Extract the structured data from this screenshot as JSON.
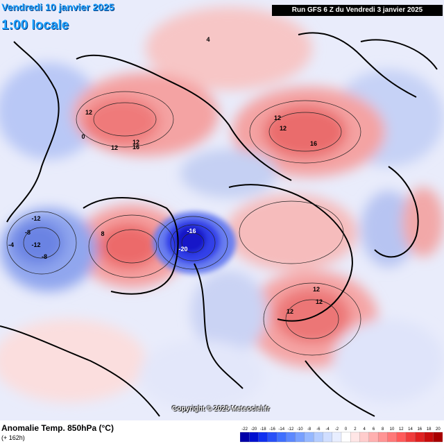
{
  "valid_time": {
    "line1": "Vendredi 10 janvier 2025",
    "line2": "1:00 locale"
  },
  "run_info": "Run GFS 6 Z du Vendredi 3 janvier 2025",
  "title": "Anomalie Temp. 850hPa (°C)",
  "forecast_hour": "(+ 162h)",
  "copyright": "Copyright © 2025 Meteociel.fr",
  "legend": {
    "values": [
      "-22",
      "-20",
      "-18",
      "-16",
      "-14",
      "-12",
      "-10",
      "-8",
      "-6",
      "-4",
      "-2",
      "0",
      "2",
      "4",
      "6",
      "8",
      "10",
      "12",
      "14",
      "16",
      "18",
      "20"
    ],
    "colors": [
      "#0000a8",
      "#0010d0",
      "#1030f0",
      "#2850f8",
      "#4070ff",
      "#5c88ff",
      "#78a0ff",
      "#96b8ff",
      "#b4ccff",
      "#d0deff",
      "#e8eeff",
      "#ffffff",
      "#ffe6e6",
      "#ffcccc",
      "#ffb0b0",
      "#ff9494",
      "#ff7878",
      "#ff5a5a",
      "#f03c3c",
      "#e02020",
      "#c80c0c",
      "#a80000"
    ]
  },
  "map_labels": [
    {
      "text": "-12",
      "tone": "cold"
    },
    {
      "text": "-16",
      "tone": "cold"
    },
    {
      "text": "-20",
      "tone": "cold"
    },
    {
      "text": "-8",
      "tone": "cold"
    },
    {
      "text": "-12",
      "tone": "cold"
    },
    {
      "text": "-4",
      "tone": "cold"
    },
    {
      "text": "-8",
      "tone": "cold"
    },
    {
      "text": "12",
      "tone": "warm"
    },
    {
      "text": "12",
      "tone": "warm"
    },
    {
      "text": "16",
      "tone": "warm"
    },
    {
      "text": "12",
      "tone": "warm"
    },
    {
      "text": "16",
      "tone": "warm"
    },
    {
      "text": "12",
      "tone": "warm"
    },
    {
      "text": "12",
      "tone": "warm"
    },
    {
      "text": "12",
      "tone": "warm"
    },
    {
      "text": "12",
      "tone": "warm"
    },
    {
      "text": "12",
      "tone": "warm"
    },
    {
      "text": "8",
      "tone": "warm"
    },
    {
      "text": "4",
      "tone": "warm"
    },
    {
      "text": "0",
      "tone": "neutral"
    }
  ]
}
